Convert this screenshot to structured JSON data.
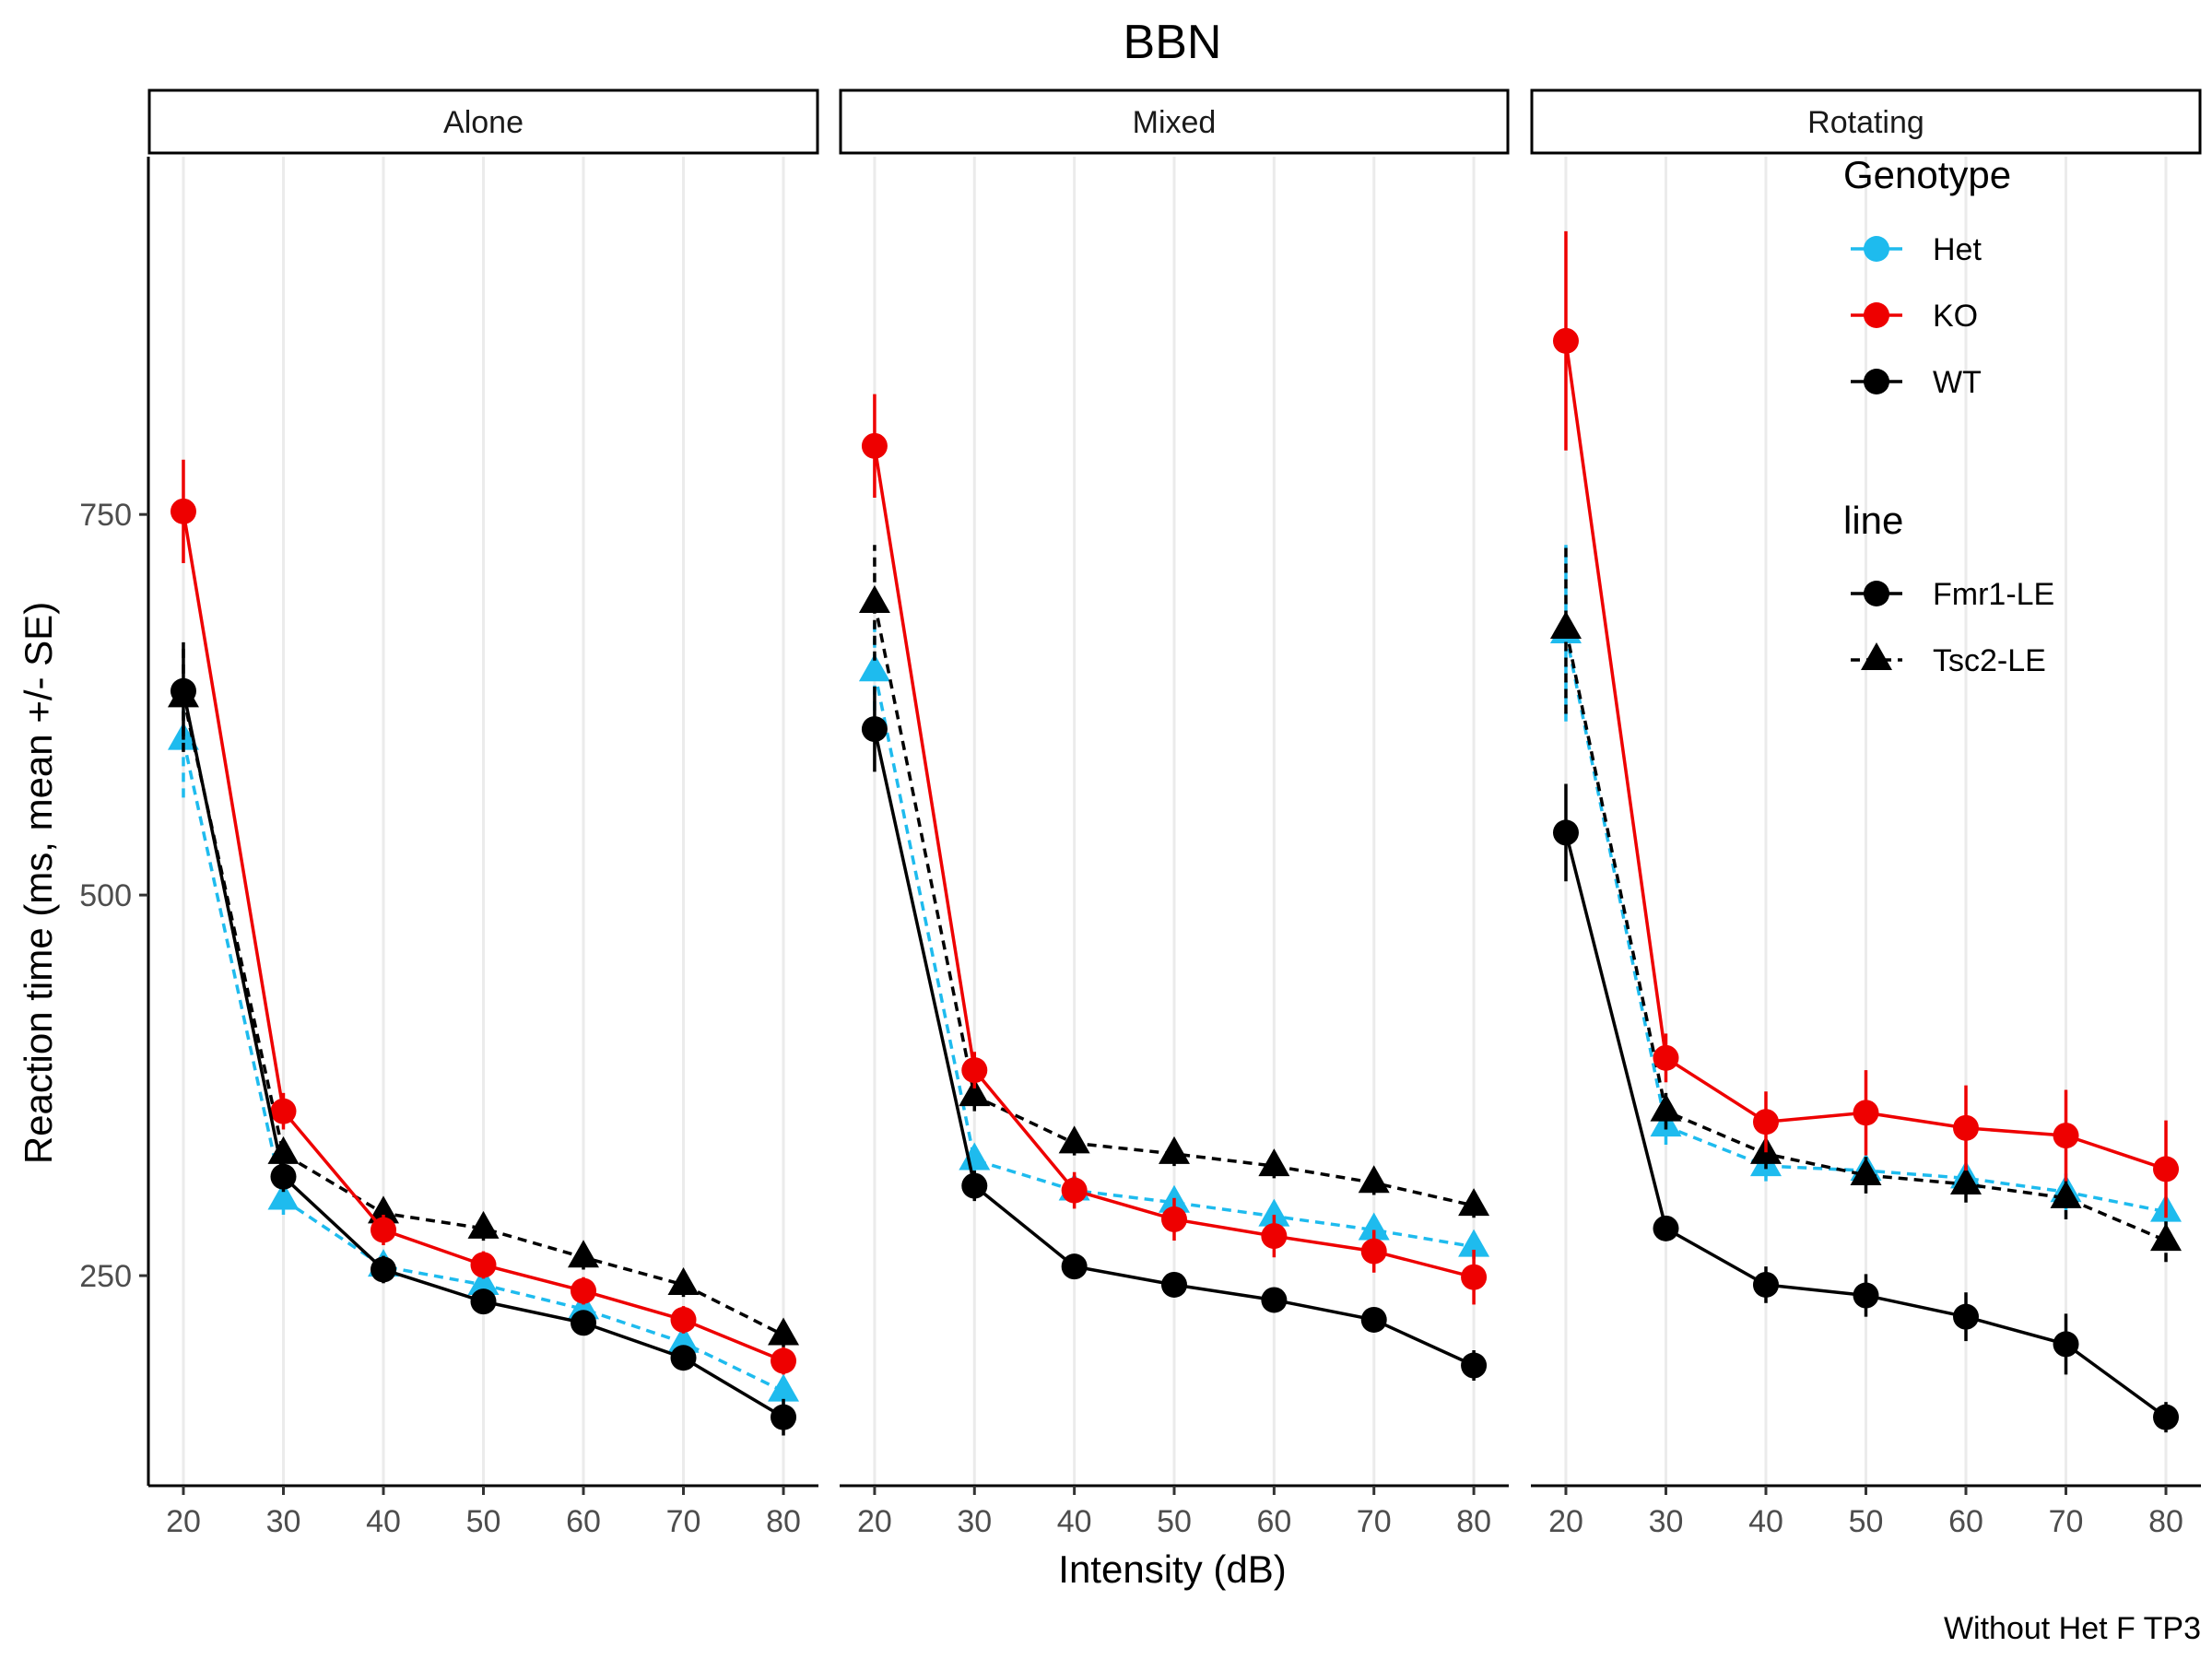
{
  "chart_data": {
    "type": "line",
    "title": "BBN",
    "xlabel": "Intensity (dB)",
    "ylabel": "Reaction time (ms, mean +/- SE)",
    "caption": "Without Het F TP3",
    "x": [
      20,
      30,
      40,
      50,
      60,
      70,
      80
    ],
    "y_ticks": [
      250,
      500,
      750
    ],
    "ylim": [
      112,
      985
    ],
    "xlim": [
      16.5,
      83.5
    ],
    "grid": "vertical major lines",
    "legend_placement": "top-right",
    "colors": {
      "Het": "#1ebbee",
      "KO": "#ee0000",
      "WT": "#000000"
    },
    "legend": {
      "genotype_title": "Genotype",
      "genotype_items": [
        "Het",
        "KO",
        "WT"
      ],
      "line_title": "line",
      "line_items": [
        "Fmr1-LE",
        "Tsc2-LE"
      ]
    },
    "panels": [
      {
        "label": "Alone",
        "series": [
          {
            "genotype": "KO",
            "line": "Fmr1-LE",
            "values": [
              752,
              358,
              280,
              257,
              240,
              221,
              194
            ],
            "se": [
              34,
              12,
              10,
              9,
              9,
              9,
              9
            ]
          },
          {
            "genotype": "WT",
            "line": "Fmr1-LE",
            "values": [
              634,
              315,
              254,
              233,
              219,
              196,
              157
            ],
            "se": [
              32,
              10,
              9,
              8,
              8,
              8,
              12
            ]
          },
          {
            "genotype": "Het",
            "line": "Tsc2-LE",
            "values": [
              602,
              300,
              256,
              244,
              228,
              206,
              174
            ],
            "se": [
              38,
              10,
              8,
              8,
              8,
              8,
              9
            ]
          },
          {
            "genotype": "WT",
            "line": "Tsc2-LE",
            "values": [
              630,
              330,
              291,
              281,
              262,
              244,
              211
            ],
            "se": [
              36,
              10,
              8,
              8,
              8,
              8,
              8
            ]
          }
        ]
      },
      {
        "label": "Mixed",
        "series": [
          {
            "genotype": "KO",
            "line": "Fmr1-LE",
            "values": [
              795,
              385,
              306,
              287,
              276,
              266,
              249
            ],
            "se": [
              34,
              12,
              12,
              14,
              14,
              14,
              18
            ]
          },
          {
            "genotype": "WT",
            "line": "Fmr1-LE",
            "values": [
              609,
              309,
              256,
              244,
              234,
              221,
              191
            ],
            "se": [
              28,
              10,
              8,
              7,
              7,
              8,
              10
            ]
          },
          {
            "genotype": "Het",
            "line": "Tsc2-LE",
            "values": [
              647,
              326,
              306,
              298,
              289,
              280,
              269
            ],
            "se": [
              36,
              10,
              8,
              8,
              8,
              8,
              8
            ]
          },
          {
            "genotype": "WT",
            "line": "Tsc2-LE",
            "values": [
              692,
              368,
              337,
              330,
              322,
              311,
              296
            ],
            "se": [
              38,
              10,
              8,
              8,
              8,
              8,
              8
            ]
          }
        ]
      },
      {
        "label": "Rotating",
        "series": [
          {
            "genotype": "KO",
            "line": "Fmr1-LE",
            "values": [
              864,
              393,
              351,
              357,
              347,
              342,
              320
            ],
            "se": [
              72,
              16,
              20,
              28,
              28,
              30,
              32
            ]
          },
          {
            "genotype": "WT",
            "line": "Fmr1-LE",
            "values": [
              541,
              281,
              244,
              237,
              223,
              205,
              157
            ],
            "se": [
              32,
              8,
              12,
              14,
              16,
              20,
              10
            ]
          },
          {
            "genotype": "Het",
            "line": "Tsc2-LE",
            "values": [
              672,
              348,
              322,
              319,
              314,
              305,
              292
            ],
            "se": [
              58,
              12,
              10,
              10,
              10,
              12,
              10
            ]
          },
          {
            "genotype": "WT",
            "line": "Tsc2-LE",
            "values": [
              675,
              358,
              330,
              316,
              310,
              301,
              273
            ],
            "se": [
              56,
              12,
              10,
              12,
              12,
              14,
              14
            ]
          }
        ]
      }
    ]
  }
}
